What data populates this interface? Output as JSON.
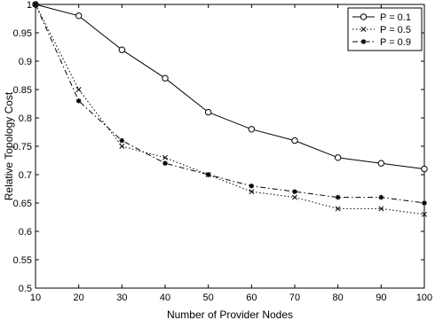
{
  "chart_data": {
    "type": "line",
    "title": "",
    "xlabel": "Number of Provider Nodes",
    "ylabel": "Relative Topology Cost",
    "xlim": [
      10,
      100
    ],
    "ylim": [
      0.5,
      1.0
    ],
    "x_ticks": [
      10,
      20,
      30,
      40,
      50,
      60,
      70,
      80,
      90,
      100
    ],
    "y_ticks": [
      0.5,
      0.55,
      0.6,
      0.65,
      0.7,
      0.75,
      0.8,
      0.85,
      0.9,
      0.95,
      1
    ],
    "grid": false,
    "legend_position": "top-right",
    "x": [
      10,
      20,
      30,
      40,
      50,
      60,
      70,
      80,
      90,
      100
    ],
    "series": [
      {
        "name": "P = 0.1",
        "marker": "circle",
        "line_style": "solid",
        "values": [
          1.0,
          0.98,
          0.92,
          0.87,
          0.81,
          0.78,
          0.76,
          0.73,
          0.72,
          0.71
        ]
      },
      {
        "name": "P = 0.5",
        "marker": "x",
        "line_style": "dotted",
        "values": [
          1.0,
          0.85,
          0.75,
          0.73,
          0.7,
          0.67,
          0.66,
          0.64,
          0.64,
          0.63
        ]
      },
      {
        "name": "P = 0.9",
        "marker": "star",
        "line_style": "dash-dot",
        "values": [
          1.0,
          0.83,
          0.76,
          0.72,
          0.7,
          0.68,
          0.67,
          0.66,
          0.66,
          0.65
        ]
      }
    ]
  }
}
